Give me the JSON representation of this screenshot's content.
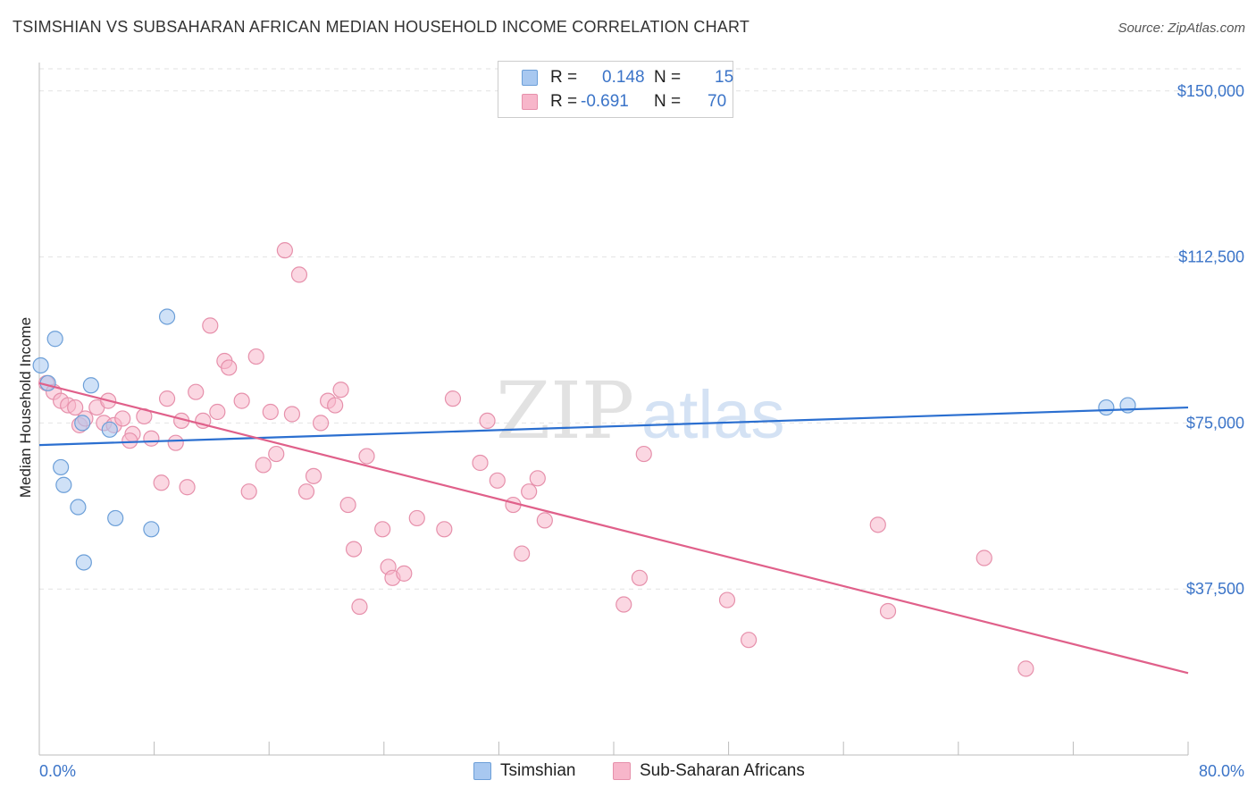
{
  "header": {
    "title": "TSIMSHIAN VS SUBSAHARAN AFRICAN MEDIAN HOUSEHOLD INCOME CORRELATION CHART",
    "source": "Source: ZipAtlas.com"
  },
  "watermark": {
    "zip": "ZIP",
    "atlas": "atlas"
  },
  "legend": {
    "r_label": "R =",
    "n_label": "N =",
    "rows": [
      {
        "r": "0.148",
        "n": "15",
        "color": "#a8c8f0"
      },
      {
        "r": "-0.691",
        "n": "70",
        "color": "#f7b6ca"
      }
    ]
  },
  "chart_data": {
    "type": "scatter",
    "title": "TSIMSHIAN VS SUBSAHARAN AFRICAN MEDIAN HOUSEHOLD INCOME CORRELATION CHART",
    "xlabel": "",
    "ylabel": "Median Household Income",
    "xlim": [
      0,
      80
    ],
    "ylim": [
      0,
      155000
    ],
    "x_tick_labels": [
      "0.0%",
      "80.0%"
    ],
    "y_ticks": [
      37500,
      75000,
      112500,
      150000
    ],
    "y_tick_labels": [
      "$37,500",
      "$75,000",
      "$112,500",
      "$150,000"
    ],
    "grid": true,
    "series": [
      {
        "name": "Tsimshian",
        "color": "#a8c8f0",
        "stroke": "#6c9fd8",
        "trend_color": "#2b6fd0",
        "trend": [
          [
            0,
            70000
          ],
          [
            80,
            78500
          ]
        ],
        "points": [
          [
            0.1,
            88000
          ],
          [
            0.6,
            84000
          ],
          [
            1.1,
            94000
          ],
          [
            1.5,
            65000
          ],
          [
            1.7,
            61000
          ],
          [
            2.7,
            56000
          ],
          [
            3.1,
            43500
          ],
          [
            3.6,
            83500
          ],
          [
            3.0,
            75000
          ],
          [
            4.9,
            73500
          ],
          [
            5.3,
            53500
          ],
          [
            7.8,
            51000
          ],
          [
            8.9,
            99000
          ],
          [
            74.3,
            78500
          ],
          [
            75.8,
            79000
          ]
        ]
      },
      {
        "name": "Sub-Saharan Africans",
        "color": "#f7b6ca",
        "stroke": "#e690ab",
        "trend_color": "#e0608a",
        "trend": [
          [
            0,
            84000
          ],
          [
            80,
            18500
          ]
        ],
        "points": [
          [
            0.5,
            84000
          ],
          [
            1.0,
            82000
          ],
          [
            1.5,
            80000
          ],
          [
            2.0,
            79000
          ],
          [
            2.5,
            78500
          ],
          [
            2.8,
            74500
          ],
          [
            3.2,
            76000
          ],
          [
            4.0,
            78500
          ],
          [
            4.5,
            75000
          ],
          [
            4.8,
            80000
          ],
          [
            5.2,
            74500
          ],
          [
            5.8,
            76000
          ],
          [
            6.5,
            72500
          ],
          [
            6.3,
            71000
          ],
          [
            7.3,
            76500
          ],
          [
            7.8,
            71500
          ],
          [
            8.5,
            61500
          ],
          [
            8.9,
            80500
          ],
          [
            9.5,
            70500
          ],
          [
            9.9,
            75500
          ],
          [
            10.3,
            60500
          ],
          [
            10.9,
            82000
          ],
          [
            11.4,
            75500
          ],
          [
            11.9,
            97000
          ],
          [
            12.4,
            77500
          ],
          [
            12.9,
            89000
          ],
          [
            13.2,
            87500
          ],
          [
            14.1,
            80000
          ],
          [
            14.6,
            59500
          ],
          [
            15.1,
            90000
          ],
          [
            15.6,
            65500
          ],
          [
            16.1,
            77500
          ],
          [
            16.5,
            68000
          ],
          [
            17.1,
            114000
          ],
          [
            17.6,
            77000
          ],
          [
            18.1,
            108500
          ],
          [
            18.6,
            59500
          ],
          [
            19.1,
            63000
          ],
          [
            19.6,
            75000
          ],
          [
            20.1,
            80000
          ],
          [
            20.6,
            79000
          ],
          [
            21.0,
            82500
          ],
          [
            21.5,
            56500
          ],
          [
            21.9,
            46500
          ],
          [
            22.3,
            33500
          ],
          [
            22.8,
            67500
          ],
          [
            23.9,
            51000
          ],
          [
            24.3,
            42500
          ],
          [
            24.6,
            40000
          ],
          [
            25.4,
            41000
          ],
          [
            26.3,
            53500
          ],
          [
            28.2,
            51000
          ],
          [
            28.8,
            80500
          ],
          [
            30.7,
            66000
          ],
          [
            31.2,
            75500
          ],
          [
            31.9,
            62000
          ],
          [
            33.0,
            56500
          ],
          [
            33.6,
            45500
          ],
          [
            34.1,
            59500
          ],
          [
            34.7,
            62500
          ],
          [
            35.2,
            53000
          ],
          [
            40.7,
            34000
          ],
          [
            42.1,
            68000
          ],
          [
            41.8,
            40000
          ],
          [
            47.9,
            35000
          ],
          [
            49.4,
            26000
          ],
          [
            58.4,
            52000
          ],
          [
            59.1,
            32500
          ],
          [
            65.8,
            44500
          ],
          [
            68.7,
            19500
          ]
        ]
      }
    ]
  },
  "bottom_legend": [
    {
      "label": "Tsimshian",
      "color": "#a8c8f0",
      "stroke": "#6c9fd8"
    },
    {
      "label": "Sub-Saharan Africans",
      "color": "#f7b6ca",
      "stroke": "#e690ab"
    }
  ]
}
